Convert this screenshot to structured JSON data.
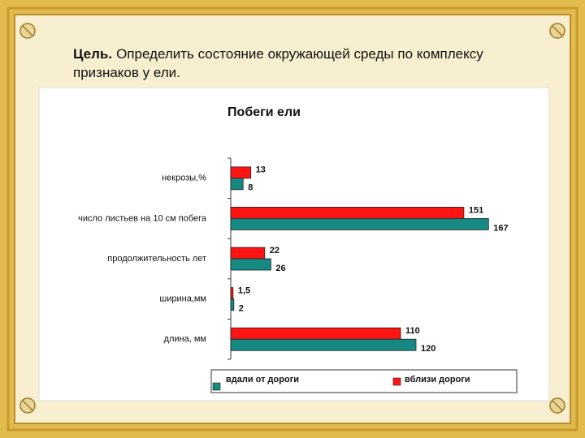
{
  "header": {
    "lead": "Цель.",
    "text": "Определить состояние окружающей среды по комплексу признаков у ели."
  },
  "chart_data": {
    "type": "bar",
    "orientation": "horizontal",
    "title": "Побеги ели",
    "categories": [
      "некрозы,%",
      "число листьев на 10 см побега",
      "продолжительность лет",
      "ширина,мм",
      "длина, мм"
    ],
    "series": [
      {
        "name": "вдали от дороги",
        "color": "#168a82",
        "values": [
          8,
          167,
          26,
          2,
          120
        ]
      },
      {
        "name": "вблизи дороги",
        "color": "#ff1414",
        "values": [
          13,
          151,
          22,
          1.5,
          110
        ],
        "value_labels": [
          "13",
          "151",
          "22",
          "1,5",
          "110"
        ]
      }
    ],
    "xlim": [
      0,
      180
    ],
    "legend": "bottom"
  }
}
